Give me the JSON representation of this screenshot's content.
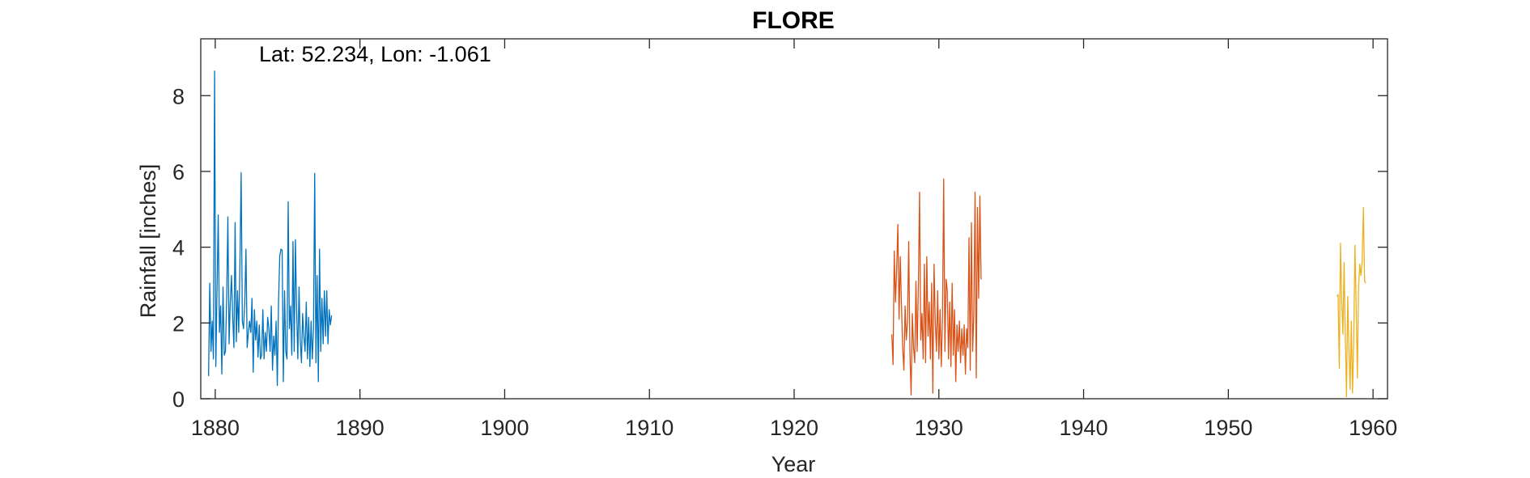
{
  "chart_data": {
    "type": "line",
    "title": "FLORE",
    "xlabel": "Year",
    "ylabel": "Rainfall [inches]",
    "annotation": "Lat: 52.234, Lon: -1.061",
    "xlim": [
      1879,
      1961
    ],
    "ylim": [
      0,
      9.5
    ],
    "x_ticks": [
      1880,
      1890,
      1900,
      1910,
      1920,
      1930,
      1940,
      1950,
      1960
    ],
    "y_ticks": [
      0,
      2,
      4,
      6,
      8
    ],
    "grid": false,
    "legend": "none",
    "series": [
      {
        "color": "#0072BD",
        "x_start": 1879.54,
        "x_step": 0.0833333,
        "values": [
          0.6,
          3.05,
          1.25,
          2.05,
          1.05,
          8.65,
          0.85,
          2.85,
          4.85,
          1.75,
          2.45,
          0.65,
          2.95,
          1.15,
          1.25,
          2.65,
          4.8,
          1.45,
          2.55,
          3.25,
          2.15,
          1.35,
          4.65,
          1.5,
          2.85,
          1.75,
          3.55,
          5.97,
          2.05,
          1.85,
          2.55,
          3.95,
          1.35,
          1.75,
          2.05,
          1.75,
          2.65,
          0.7,
          2.35,
          1.55,
          2.05,
          1.1,
          1.95,
          1.05,
          1.15,
          2.35,
          1.05,
          1.75,
          1.25,
          2.15,
          1.85,
          1.25,
          2.45,
          0.75,
          1.65,
          1.15,
          2.05,
          0.35,
          2.55,
          3.75,
          3.95,
          3.92,
          0.45,
          2.85,
          1.25,
          1.05,
          5.2,
          1.85,
          2.45,
          1.15,
          4.15,
          1.25,
          4.2,
          2.35,
          1.05,
          2.95,
          1.55,
          0.95,
          2.25,
          1.65,
          1.25,
          2.55,
          1.05,
          2.15,
          0.85,
          2.05,
          1.05,
          1.85,
          5.95,
          0.95,
          3.25,
          0.45,
          3.95,
          1.25,
          2.65,
          1.45,
          2.85,
          1.65,
          2.85,
          1.45,
          2.35,
          1.95,
          2.2
        ]
      },
      {
        "color": "#D95319",
        "x_start": 1926.75,
        "x_step": 0.0833333,
        "values": [
          1.7,
          0.9,
          3.9,
          2.55,
          3.4,
          4.6,
          2.1,
          3.75,
          2.45,
          1.35,
          0.75,
          2.45,
          1.55,
          2.05,
          4.15,
          1.25,
          0.1,
          2.25,
          1.35,
          0.95,
          3.1,
          1.25,
          3.0,
          5.45,
          1.55,
          2.25,
          1.05,
          3.55,
          0.95,
          3.75,
          1.65,
          2.55,
          1.05,
          3.05,
          0.15,
          3.55,
          2.05,
          1.25,
          2.85,
          1.05,
          2.35,
          0.85,
          2.15,
          5.8,
          1.25,
          3.15,
          2.85,
          1.05,
          2.55,
          0.85,
          3.05,
          1.15,
          2.35,
          0.45,
          1.95,
          1.25,
          2.05,
          0.95,
          1.85,
          1.15,
          1.95,
          0.65,
          1.85,
          1.35,
          4.25,
          0.75,
          4.65,
          1.25,
          2.25,
          5.45,
          0.55,
          5.05,
          2.65,
          5.35,
          3.15
        ]
      },
      {
        "color": "#EDB120",
        "x_start": 1957.5,
        "x_step": 0.0833333,
        "values": [
          2.7,
          2.75,
          0.8,
          4.1,
          2.6,
          1.7,
          3.6,
          1.65,
          0.05,
          2.7,
          1.3,
          0.25,
          2.05,
          0.15,
          1.6,
          4.05,
          2.45,
          0.55,
          2.95,
          3.55,
          3.25,
          3.65,
          5.05,
          3.1,
          3.05
        ]
      }
    ]
  }
}
